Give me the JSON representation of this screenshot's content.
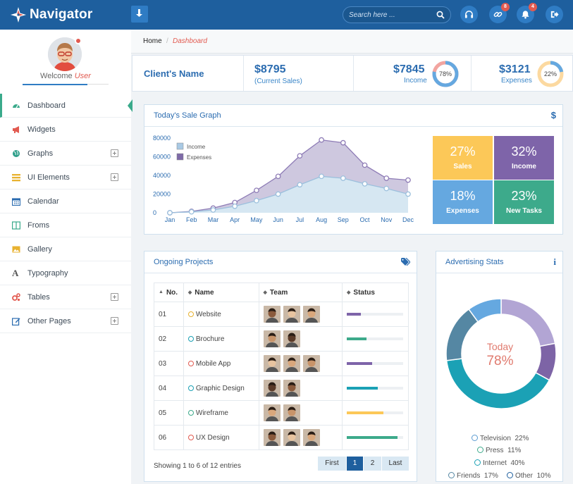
{
  "app": {
    "name": "Navigator"
  },
  "header": {
    "search_placeholder": "Search here ...",
    "icons": [
      {
        "name": "headset-icon",
        "badge": ""
      },
      {
        "name": "link-icon",
        "badge": "8"
      },
      {
        "name": "bell-icon",
        "badge": "4"
      },
      {
        "name": "logout-icon",
        "badge": ""
      }
    ]
  },
  "user": {
    "welcome": "Welcome",
    "name": "User"
  },
  "sidebar": {
    "items": [
      {
        "label": "Dashboard",
        "icon": "dashboard-icon",
        "color": "#3aaa8b",
        "expandable": false
      },
      {
        "label": "Widgets",
        "icon": "megaphone-icon",
        "color": "#e25a50",
        "expandable": false
      },
      {
        "label": "Graphs",
        "icon": "globe-icon",
        "color": "#2e9f8a",
        "expandable": true
      },
      {
        "label": "UI Elements",
        "icon": "list-icon",
        "color": "#e8b230",
        "expandable": true
      },
      {
        "label": "Calendar",
        "icon": "calendar-icon",
        "color": "#2b6cb0",
        "expandable": false
      },
      {
        "label": "Froms",
        "icon": "columns-icon",
        "color": "#3aaa8b",
        "expandable": false
      },
      {
        "label": "Gallery",
        "icon": "picture-icon",
        "color": "#e8b230",
        "expandable": false
      },
      {
        "label": "Typography",
        "icon": "font-icon",
        "color": "#555555",
        "expandable": false
      },
      {
        "label": "Tables",
        "icon": "cogs-icon",
        "color": "#e25a50",
        "expandable": true
      },
      {
        "label": "Other Pages",
        "icon": "edit-icon",
        "color": "#2b6cb0",
        "expandable": true
      }
    ]
  },
  "breadcrumb": {
    "home": "Home",
    "separator": "/",
    "current": "Dashboard"
  },
  "stats": {
    "client": "Client's Name",
    "current_sales": {
      "value": "$8795",
      "label": "(Current Sales)"
    },
    "income": {
      "value": "$7845",
      "label": "Income",
      "percent": 78,
      "percent_label": "78%"
    },
    "expenses": {
      "value": "$3121",
      "label": "Expenses",
      "percent": 22,
      "percent_label": "22%"
    }
  },
  "sale_graph": {
    "title": "Today's Sale Graph",
    "icon": "dollar-icon",
    "chart_data": {
      "type": "area",
      "categories": [
        "Jan",
        "Feb",
        "Mar",
        "Apr",
        "May",
        "Jun",
        "Jul",
        "Aug",
        "Sep",
        "Oct",
        "Nov",
        "Dec"
      ],
      "yticks": [
        "80000",
        "60000",
        "40000",
        "20000",
        "0"
      ],
      "ylim": [
        0,
        80000
      ],
      "legend_position": "top-left",
      "series": [
        {
          "name": "Income",
          "color": "#b7d4e9",
          "values": [
            0,
            1000,
            3000,
            7000,
            13000,
            20000,
            30000,
            39000,
            37000,
            31000,
            26000,
            20000
          ]
        },
        {
          "name": "Expenses",
          "color": "#7e6aa8",
          "values": [
            0,
            1500,
            5000,
            11000,
            24000,
            39000,
            61000,
            78000,
            75000,
            51000,
            37000,
            35000
          ]
        }
      ]
    },
    "tiles": [
      {
        "value": "27%",
        "label": "Sales",
        "color": "#fcc858"
      },
      {
        "value": "32%",
        "label": "Income",
        "color": "#7e64a9"
      },
      {
        "value": "18%",
        "label": "Expenses",
        "color": "#65a8e0"
      },
      {
        "value": "23%",
        "label": "New Tasks",
        "color": "#3daa8b"
      }
    ]
  },
  "projects": {
    "title": "Ongoing Projects",
    "icon": "tags-icon",
    "columns": [
      "No.",
      "Name",
      "Team",
      "Status"
    ],
    "rows": [
      {
        "no": "01",
        "name": "Website",
        "dot": "#e8b230",
        "team": 3,
        "progress": 25,
        "bar": "#7e64a9"
      },
      {
        "no": "02",
        "name": "Brochure",
        "dot": "#1ba1b5",
        "team": 2,
        "progress": 35,
        "bar": "#3daa8b"
      },
      {
        "no": "03",
        "name": "Mobile App",
        "dot": "#e25a50",
        "team": 3,
        "progress": 45,
        "bar": "#7e64a9"
      },
      {
        "no": "04",
        "name": "Graphic Design",
        "dot": "#1ba1b5",
        "team": 2,
        "progress": 55,
        "bar": "#1ba1b5"
      },
      {
        "no": "05",
        "name": "Wireframe",
        "dot": "#3daa8b",
        "team": 2,
        "progress": 65,
        "bar": "#fcc858"
      },
      {
        "no": "06",
        "name": "UX Design",
        "dot": "#e25a50",
        "team": 3,
        "progress": 90,
        "bar": "#3daa8b"
      }
    ],
    "showing": "Showing 1 to 6 of 12 entries",
    "pagination": {
      "first": "First",
      "pages": [
        "1",
        "2"
      ],
      "active": "1",
      "last": "Last"
    }
  },
  "advertising": {
    "title": "Advertising Stats",
    "icon": "info-icon",
    "center_label": "Today",
    "center_value": "78%",
    "chart_data": {
      "type": "pie",
      "categories": [
        "Television",
        "Press",
        "Internet",
        "Friends",
        "Other"
      ],
      "values": [
        22,
        11,
        40,
        17,
        10
      ],
      "colors": [
        "#b2a5d4",
        "#7d64a6",
        "#1ba1b5",
        "#5587a3",
        "#65a8e0"
      ]
    },
    "legend": [
      {
        "label": "Television",
        "value": "22%",
        "color": "#5b9bd1"
      },
      {
        "label": "Press",
        "value": "11%",
        "color": "#3daa8b"
      },
      {
        "label": "Internet",
        "value": "40%",
        "color": "#1ba1b5"
      },
      {
        "label": "Friends",
        "value": "17%",
        "color": "#5587a3"
      },
      {
        "label": "Other",
        "value": "10%",
        "color": "#1e5f9e"
      }
    ]
  }
}
